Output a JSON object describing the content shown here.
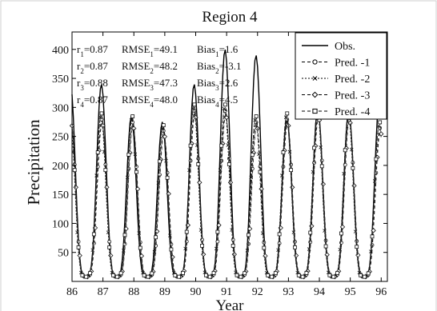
{
  "chart_data": {
    "type": "line",
    "title": "Region 4",
    "xlabel": "Year",
    "ylabel": "Precipitation",
    "xlim": [
      86,
      96.2
    ],
    "ylim": [
      0,
      430
    ],
    "xticks": [
      "86",
      "87",
      "88",
      "89",
      "90",
      "91",
      "92",
      "93",
      "94",
      "95",
      "96"
    ],
    "yticks": [
      "50",
      "100",
      "150",
      "200",
      "250",
      "300",
      "350",
      "400"
    ],
    "grid": false,
    "legend": "top-right",
    "stats": [
      {
        "r": "r1=0.87",
        "rmse": "RMSE1=49.1",
        "bias": "Bias1=1.6"
      },
      {
        "r": "r2=0.87",
        "rmse": "RMSE2=48.2",
        "bias": "Bias2=-3.1"
      },
      {
        "r": "r3=0.88",
        "rmse": "RMSE3=47.3",
        "bias": "Bias3=2.6"
      },
      {
        "r": "r4=0.87",
        "rmse": "RMSE4=48.0",
        "bias": "Bias4=4.5"
      }
    ],
    "series": [
      {
        "name": "Obs.",
        "marker": "none",
        "dash": "none"
      },
      {
        "name": "Pred. -1",
        "marker": "circle",
        "dash": "4,3"
      },
      {
        "name": "Pred. -2",
        "marker": "x",
        "dash": "2,2"
      },
      {
        "name": "Pred. -3",
        "marker": "diamond",
        "dash": "4,3"
      },
      {
        "name": "Pred. -4",
        "marker": "square",
        "dash": "4,3"
      }
    ],
    "observed_peaks": [
      {
        "x": 86.95,
        "y": 340
      },
      {
        "x": 87.92,
        "y": 285
      },
      {
        "x": 88.92,
        "y": 275
      },
      {
        "x": 89.95,
        "y": 340
      },
      {
        "x": 90.95,
        "y": 400
      },
      {
        "x": 91.95,
        "y": 390
      },
      {
        "x": 92.95,
        "y": 280
      },
      {
        "x": 93.95,
        "y": 300
      },
      {
        "x": 94.95,
        "y": 295
      },
      {
        "x": 95.95,
        "y": 318
      }
    ],
    "predicted_peaks": [
      {
        "x": 86.95,
        "y": 285
      },
      {
        "x": 87.95,
        "y": 280
      },
      {
        "x": 88.95,
        "y": 265
      },
      {
        "x": 89.95,
        "y": 300
      },
      {
        "x": 90.95,
        "y": 300
      },
      {
        "x": 91.95,
        "y": 280
      },
      {
        "x": 92.95,
        "y": 285
      },
      {
        "x": 93.95,
        "y": 295
      },
      {
        "x": 94.95,
        "y": 290
      },
      {
        "x": 95.95,
        "y": 270
      }
    ],
    "trough_value": 8
  }
}
